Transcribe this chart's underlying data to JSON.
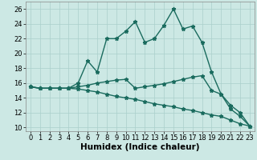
{
  "xlabel": "Humidex (Indice chaleur)",
  "bg_color": "#cce8e4",
  "grid_color": "#aacfcb",
  "line_color": "#1a6b5e",
  "x_values": [
    0,
    1,
    2,
    3,
    4,
    5,
    6,
    7,
    8,
    9,
    10,
    11,
    12,
    13,
    14,
    15,
    16,
    17,
    18,
    19,
    20,
    21,
    22,
    23
  ],
  "line1": [
    15.5,
    15.3,
    15.3,
    15.3,
    15.3,
    16.0,
    19.0,
    17.5,
    22.0,
    22.0,
    23.0,
    24.3,
    21.5,
    22.0,
    23.8,
    26.0,
    23.3,
    23.7,
    21.5,
    17.5,
    14.5,
    12.5,
    11.5,
    10.2
  ],
  "line2": [
    15.5,
    15.3,
    15.3,
    15.3,
    15.3,
    15.5,
    15.7,
    16.0,
    16.2,
    16.4,
    16.5,
    15.3,
    15.5,
    15.7,
    15.9,
    16.2,
    16.5,
    16.8,
    17.0,
    15.0,
    14.5,
    13.0,
    12.0,
    10.2
  ],
  "line3": [
    15.5,
    15.3,
    15.3,
    15.3,
    15.3,
    15.2,
    15.0,
    14.8,
    14.5,
    14.2,
    14.0,
    13.8,
    13.5,
    13.2,
    13.0,
    12.8,
    12.5,
    12.3,
    12.0,
    11.7,
    11.5,
    11.0,
    10.5,
    10.2
  ],
  "ylim": [
    9.5,
    27
  ],
  "xlim": [
    -0.5,
    23.5
  ],
  "yticks": [
    10,
    12,
    14,
    16,
    18,
    20,
    22,
    24,
    26
  ],
  "xticks": [
    0,
    1,
    2,
    3,
    4,
    5,
    6,
    7,
    8,
    9,
    10,
    11,
    12,
    13,
    14,
    15,
    16,
    17,
    18,
    19,
    20,
    21,
    22,
    23
  ],
  "marker": "*",
  "markersize": 3.5,
  "linewidth": 1.0,
  "xlabel_fontsize": 7.5,
  "tick_fontsize": 6.0
}
